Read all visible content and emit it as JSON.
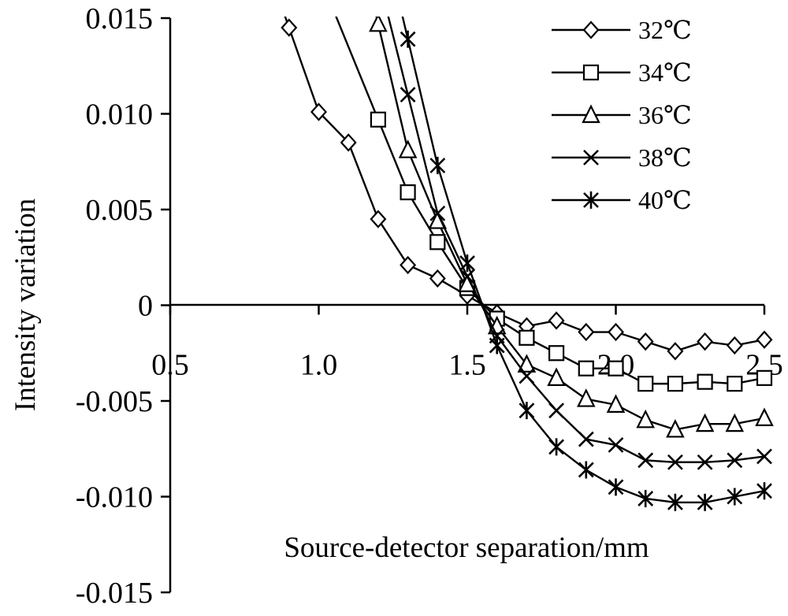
{
  "chart_data": {
    "type": "line",
    "title": "",
    "xlabel": "Source-detector separation/mm",
    "ylabel": "Intensity variation",
    "xlim": [
      0.5,
      2.5
    ],
    "ylim": [
      -0.015,
      0.015
    ],
    "x_ticks": [
      "0.5",
      "1.0",
      "1.5",
      "2.0",
      "2.5"
    ],
    "y_ticks": [
      "0.015",
      "0.010",
      "0.005",
      "0",
      "-0.005",
      "-0.010",
      "-0.015"
    ],
    "legend_position": "top-right",
    "grid": false,
    "series": [
      {
        "name": "32℃",
        "marker": "diamond",
        "x": [
          0.9,
          1.0,
          1.1,
          1.2,
          1.3,
          1.4,
          1.5,
          1.6,
          1.7,
          1.8,
          1.9,
          2.0,
          2.1,
          2.2,
          2.3,
          2.4,
          2.5
        ],
        "y": [
          0.0145,
          0.0101,
          0.0085,
          0.0045,
          0.0021,
          0.0014,
          0.0005,
          -0.0004,
          -0.0011,
          -0.0008,
          -0.0014,
          -0.0014,
          -0.0019,
          -0.0024,
          -0.0019,
          -0.0021,
          -0.0018
        ]
      },
      {
        "name": "34℃",
        "marker": "square",
        "x": [
          1.2,
          1.3,
          1.4,
          1.5,
          1.6,
          1.7,
          1.8,
          1.9,
          2.0,
          2.1,
          2.2,
          2.3,
          2.4,
          2.5
        ],
        "y": [
          0.0097,
          0.0059,
          0.0033,
          0.0009,
          -0.0007,
          -0.0017,
          -0.0025,
          -0.0033,
          -0.0033,
          -0.0041,
          -0.0041,
          -0.004,
          -0.0041,
          -0.0038
        ]
      },
      {
        "name": "36℃",
        "marker": "triangle",
        "x": [
          1.2,
          1.3,
          1.4,
          1.5,
          1.6,
          1.7,
          1.8,
          1.9,
          2.0,
          2.1,
          2.2,
          2.3,
          2.4,
          2.5
        ],
        "y": [
          0.0147,
          0.0081,
          0.0044,
          0.0011,
          -0.0011,
          -0.0031,
          -0.0038,
          -0.0049,
          -0.0052,
          -0.006,
          -0.0065,
          -0.0062,
          -0.0062,
          -0.0059
        ]
      },
      {
        "name": "38℃",
        "marker": "x",
        "x": [
          1.3,
          1.4,
          1.5,
          1.6,
          1.7,
          1.8,
          1.9,
          2.0,
          2.1,
          2.2,
          2.3,
          2.4,
          2.5
        ],
        "y": [
          0.011,
          0.0048,
          0.0015,
          -0.0016,
          -0.0037,
          -0.0055,
          -0.007,
          -0.0073,
          -0.0081,
          -0.0082,
          -0.0082,
          -0.0081,
          -0.0079
        ]
      },
      {
        "name": "40℃",
        "marker": "asterisk",
        "x": [
          1.3,
          1.4,
          1.5,
          1.6,
          1.7,
          1.8,
          1.9,
          2.0,
          2.1,
          2.2,
          2.3,
          2.4,
          2.5
        ],
        "y": [
          0.0139,
          0.0073,
          0.0022,
          -0.0021,
          -0.0055,
          -0.0074,
          -0.0086,
          -0.0095,
          -0.0101,
          -0.0103,
          -0.0103,
          -0.01,
          -0.0097
        ]
      }
    ]
  }
}
